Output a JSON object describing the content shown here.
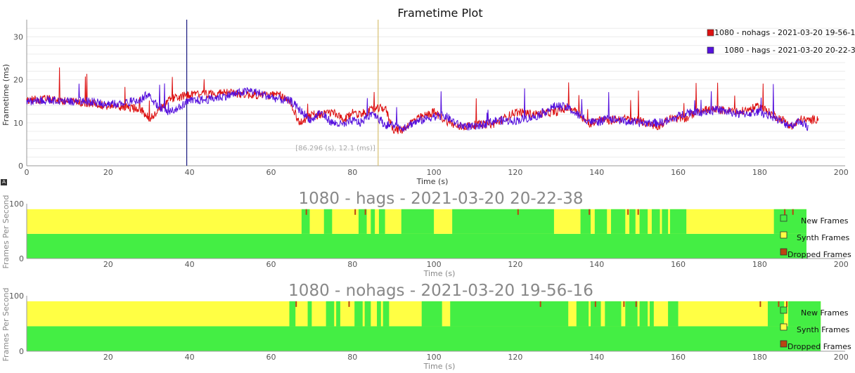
{
  "chart_data": [
    {
      "type": "line",
      "title": "Frametime Plot",
      "xlabel": "Time (s)",
      "ylabel": "Frametime (ms)",
      "xlim": [
        0,
        201
      ],
      "ylim": [
        0,
        34
      ],
      "xticks": [
        0,
        20,
        40,
        60,
        80,
        100,
        120,
        140,
        160,
        180,
        200
      ],
      "yticks": [
        0,
        10,
        20,
        30
      ],
      "grid": true,
      "legend_position": "top-right",
      "cursor_label": "[86.296 (s), 12.1 (ms)]",
      "markers": [
        {
          "x": 39.3,
          "color": "#1a1a80"
        },
        {
          "x": 86.3,
          "color": "#d8c070"
        }
      ],
      "series": [
        {
          "name": "1080 - nohags - 2021-03-20 19-56-16",
          "color": "#dd1111",
          "x": [
            0,
            5,
            10,
            15,
            20,
            25,
            28,
            30,
            32,
            35,
            40,
            45,
            50,
            55,
            60,
            62,
            65,
            67,
            70,
            72,
            75,
            78,
            80,
            82,
            85,
            88,
            90,
            92,
            95,
            100,
            103,
            106,
            110,
            115,
            120,
            125,
            130,
            133,
            135,
            138,
            140,
            143,
            146,
            150,
            155,
            158,
            162,
            165,
            170,
            175,
            180,
            183,
            186,
            188,
            190,
            192,
            194.5
          ],
          "y": [
            15.2,
            15.5,
            15.0,
            14.5,
            14.0,
            13.5,
            13.2,
            11.0,
            12.3,
            15.5,
            16.5,
            16.8,
            17.0,
            16.5,
            16.4,
            16.5,
            14.5,
            9.8,
            12.0,
            11.8,
            12.5,
            10.5,
            12.5,
            12.0,
            13.0,
            13.5,
            8.5,
            8.2,
            10.5,
            12.5,
            10.5,
            9.0,
            9.5,
            9.8,
            12.5,
            12.0,
            12.5,
            13.5,
            13.0,
            9.5,
            10.8,
            10.5,
            11.0,
            10.5,
            9.2,
            11.0,
            11.0,
            13.0,
            13.0,
            12.5,
            13.8,
            12.0,
            10.5,
            9.0,
            10.8,
            10.5,
            11.0
          ]
        },
        {
          "name": "1080 - hags - 2021-03-20 20-22-38",
          "color": "#5511dd",
          "x": [
            0,
            5,
            10,
            15,
            20,
            25,
            28,
            30,
            32,
            35,
            40,
            45,
            50,
            55,
            60,
            62,
            65,
            67,
            70,
            72,
            75,
            78,
            80,
            82,
            85,
            88,
            90,
            92,
            95,
            100,
            103,
            106,
            110,
            115,
            120,
            125,
            130,
            133,
            135,
            138,
            140,
            143,
            146,
            150,
            155,
            158,
            162,
            165,
            170,
            175,
            180,
            183,
            186,
            188,
            190,
            192
          ],
          "y": [
            15.0,
            15.3,
            15.0,
            15.0,
            14.2,
            14.8,
            15.5,
            16.8,
            14.0,
            12.5,
            15.0,
            15.5,
            16.5,
            17.5,
            16.0,
            15.5,
            15.0,
            13.0,
            10.5,
            12.5,
            10.0,
            9.5,
            10.5,
            10.0,
            12.5,
            9.5,
            9.5,
            8.8,
            10.0,
            11.5,
            11.5,
            9.5,
            9.0,
            10.5,
            10.5,
            11.5,
            14.0,
            13.5,
            12.0,
            10.5,
            10.0,
            11.0,
            10.5,
            10.0,
            10.0,
            10.5,
            12.5,
            12.5,
            13.0,
            12.0,
            12.5,
            11.5,
            9.8,
            9.5,
            10.5,
            8.8
          ]
        }
      ]
    },
    {
      "type": "area",
      "title": "1080 - hags - 2021-03-20 20-22-38",
      "xlabel": "Time (s)",
      "ylabel": "Frames Per Second",
      "xlim": [
        0,
        201
      ],
      "ylim": [
        0,
        100
      ],
      "xticks": [
        20,
        40,
        60,
        80,
        100,
        120,
        140,
        160,
        180,
        200
      ],
      "yticks": [
        0,
        100
      ],
      "legend_position": "right",
      "new_fps_level": 45,
      "total_fps_level": 90,
      "end_time": 191.5,
      "legend": [
        {
          "name": "New Frames",
          "color": "#44ee44"
        },
        {
          "name": "Synth Frames",
          "color": "#ffff44"
        },
        {
          "name": "Dropped Frames",
          "color": "#bb4411"
        }
      ],
      "full_native_intervals": [
        [
          67.5,
          69.5
        ],
        [
          73.0,
          75.0
        ],
        [
          81.5,
          83.5
        ],
        [
          84.5,
          85.5
        ],
        [
          86.5,
          88.0
        ],
        [
          92.0,
          100.0
        ],
        [
          104.5,
          129.5
        ],
        [
          136.0,
          138.5
        ],
        [
          139.5,
          142.5
        ],
        [
          143.5,
          147.0
        ],
        [
          148.0,
          149.5
        ],
        [
          150.5,
          152.5
        ],
        [
          153.5,
          155.5
        ],
        [
          156.0,
          157.5
        ],
        [
          158.0,
          162.0
        ],
        [
          183.5,
          191.5
        ]
      ],
      "dropped_at": [
        68.5,
        80.5,
        83.0,
        120.5,
        138.0,
        147.5,
        150.0,
        186.0,
        188.0
      ]
    },
    {
      "type": "area",
      "title": "1080 - nohags - 2021-03-20 19-56-16",
      "xlabel": "Time (s)",
      "ylabel": "Frames Per Second",
      "xlim": [
        0,
        201
      ],
      "ylim": [
        0,
        100
      ],
      "xticks": [
        20,
        40,
        60,
        80,
        100,
        120,
        140,
        160,
        180,
        200
      ],
      "yticks": [
        0,
        100
      ],
      "legend_position": "right",
      "new_fps_level": 45,
      "total_fps_level": 90,
      "end_time": 195,
      "legend": [
        {
          "name": "New Frames",
          "color": "#44ee44"
        },
        {
          "name": "Synth Frames",
          "color": "#ffff44"
        },
        {
          "name": "Dropped Frames",
          "color": "#bb4411"
        }
      ],
      "full_native_intervals": [
        [
          64.5,
          66.0
        ],
        [
          69.0,
          70.0
        ],
        [
          73.5,
          75.5
        ],
        [
          76.0,
          77.0
        ],
        [
          80.5,
          82.5
        ],
        [
          83.0,
          84.5
        ],
        [
          86.0,
          87.0
        ],
        [
          87.5,
          89.0
        ],
        [
          97.0,
          102.0
        ],
        [
          104.0,
          133.0
        ],
        [
          135.0,
          138.0
        ],
        [
          138.5,
          141.0
        ],
        [
          142.0,
          146.0
        ],
        [
          147.0,
          150.0
        ],
        [
          150.5,
          152.5
        ],
        [
          153.0,
          154.0
        ],
        [
          157.5,
          160.0
        ],
        [
          182.0,
          186.0
        ],
        [
          187.0,
          195.0
        ]
      ],
      "dropped_at": [
        66.0,
        79.0,
        126.0,
        139.5,
        146.5,
        149.5,
        180.0,
        184.5,
        186.5
      ]
    }
  ]
}
